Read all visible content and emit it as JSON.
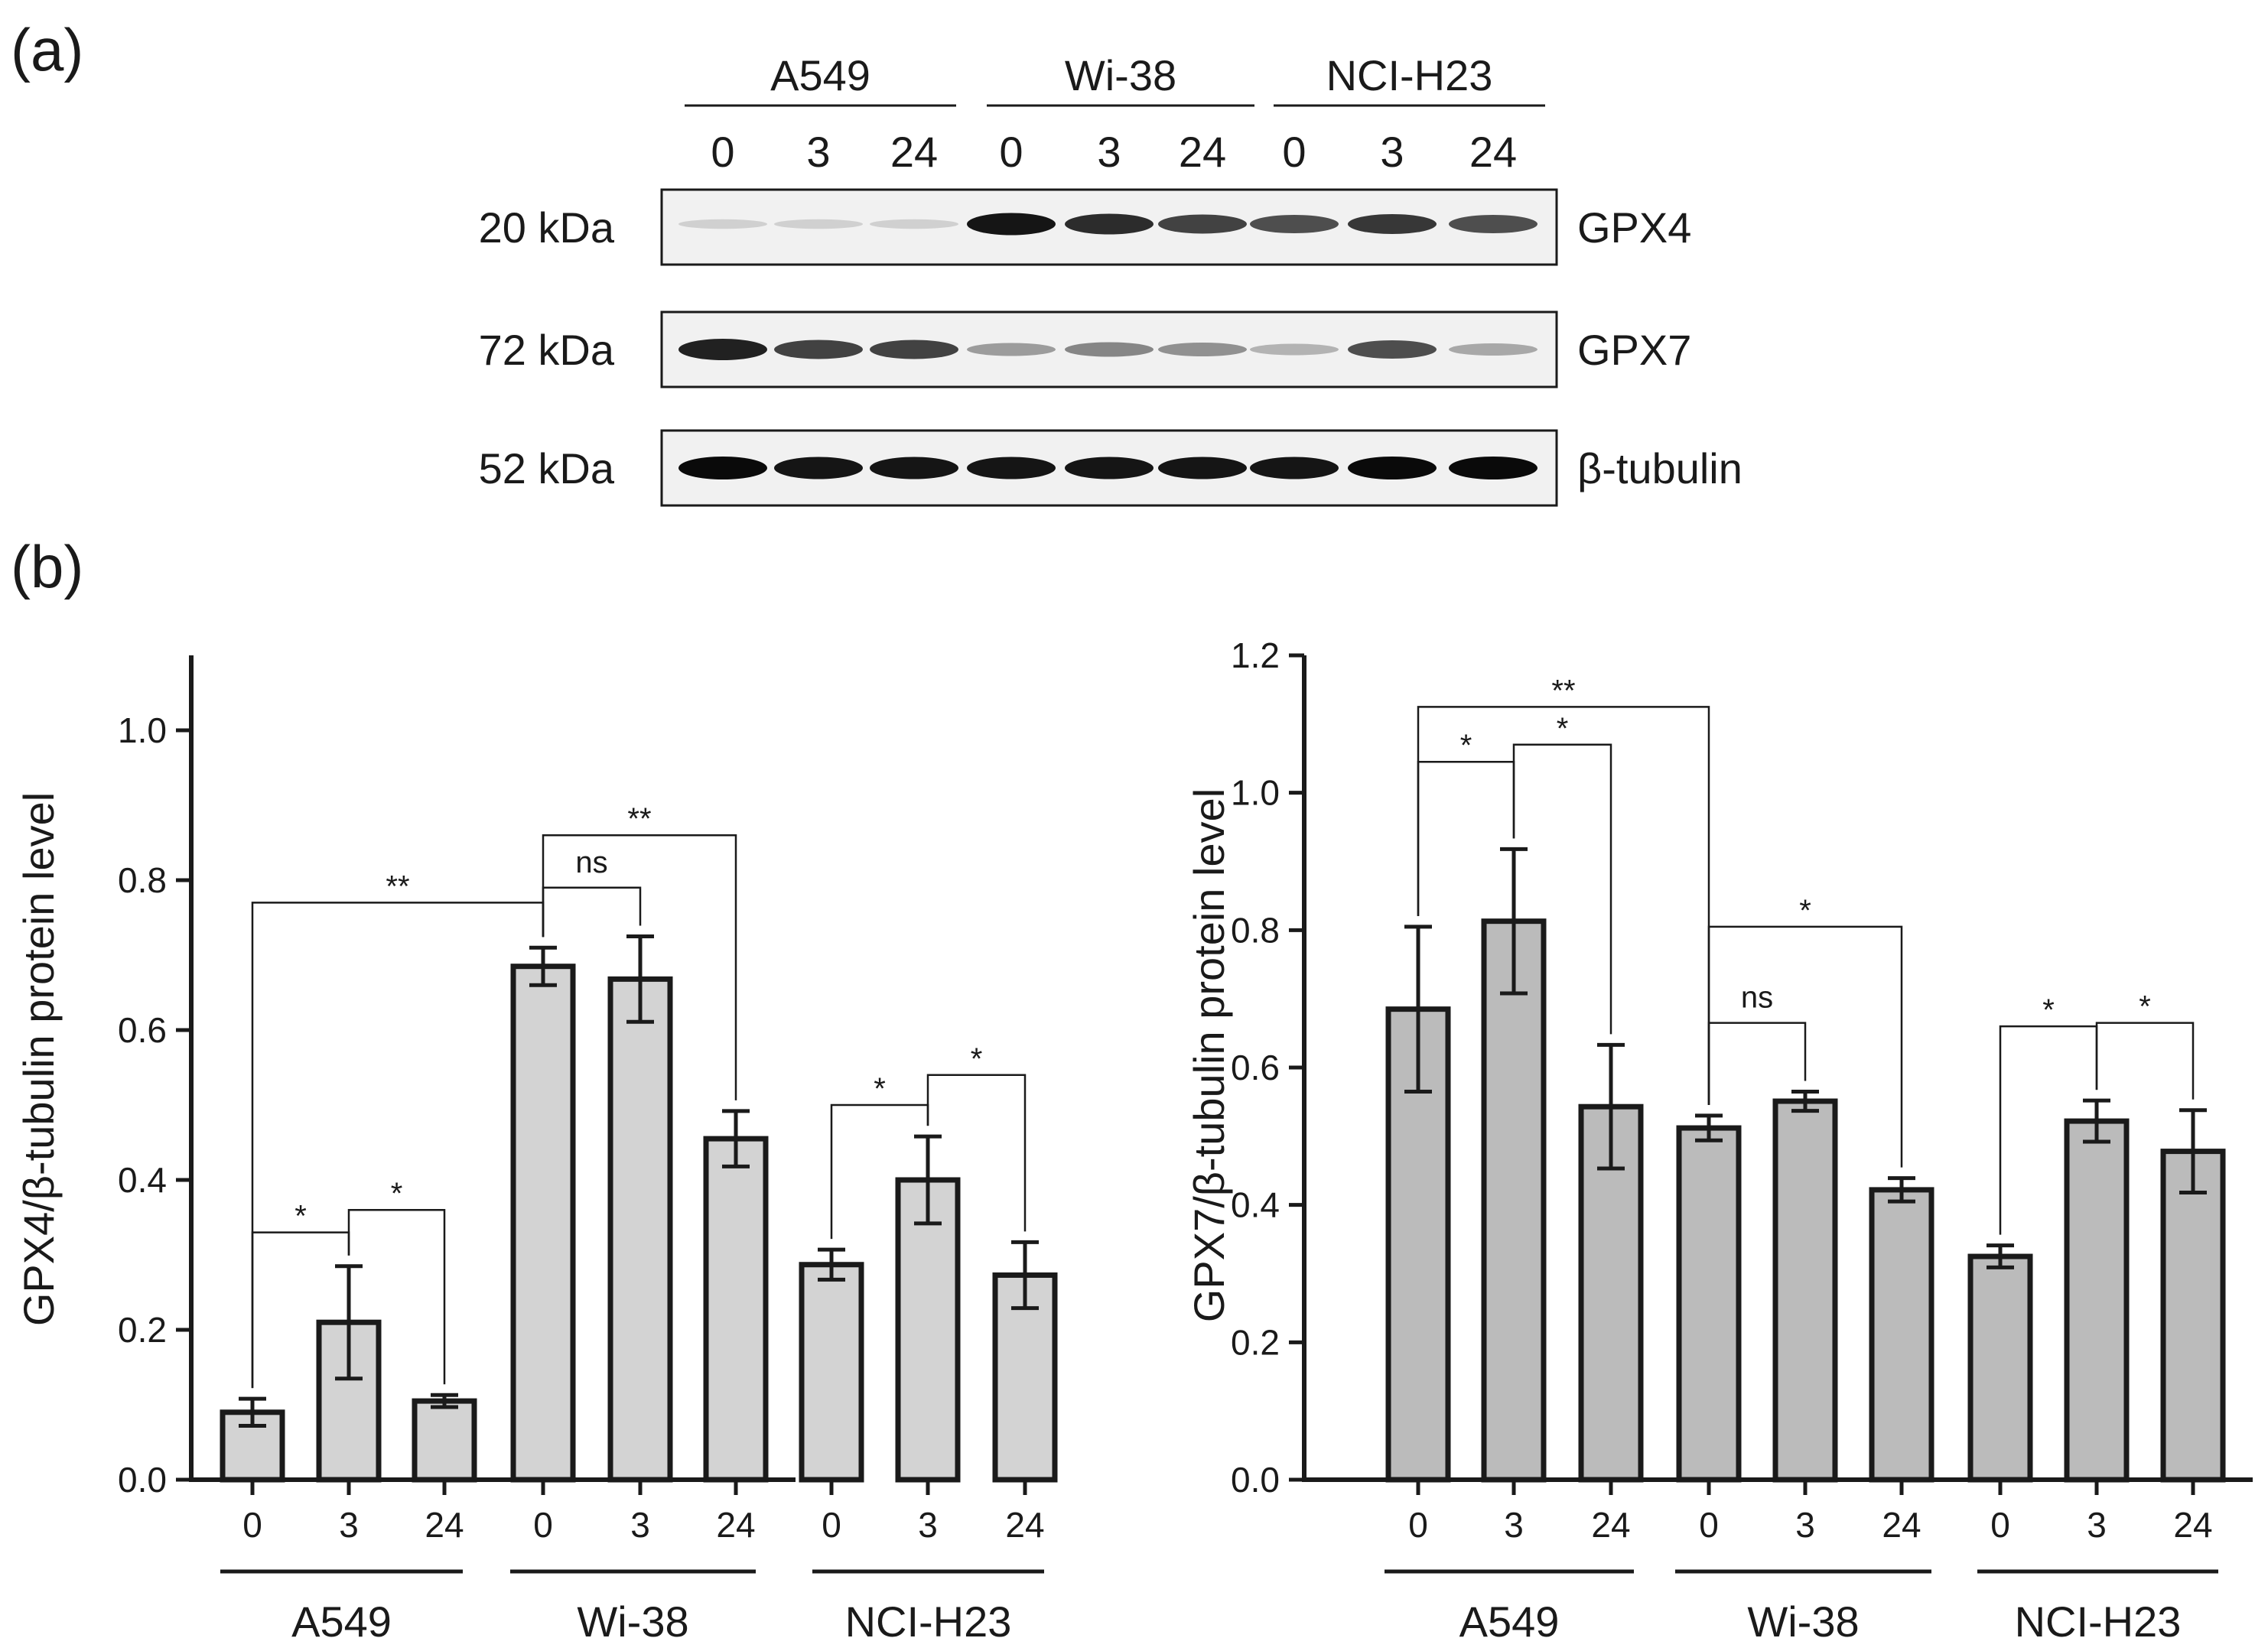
{
  "panel_a": {
    "label": "(a)",
    "cell_lines": [
      "A549",
      "Wi-38",
      "NCI-H23"
    ],
    "timepoints": [
      "0",
      "3",
      "24"
    ],
    "blots": [
      {
        "mw": "20 kDa",
        "protein": "GPX4",
        "band_intensity": [
          0.12,
          0.12,
          0.12,
          0.95,
          0.85,
          0.75,
          0.7,
          0.8,
          0.7
        ]
      },
      {
        "mw": "72 kDa",
        "protein": "GPX7",
        "band_intensity": [
          0.9,
          0.75,
          0.75,
          0.35,
          0.45,
          0.4,
          0.25,
          0.7,
          0.3
        ]
      },
      {
        "mw": "52 kDa",
        "protein": "β-tubulin",
        "band_intensity": [
          1.0,
          0.95,
          0.95,
          0.95,
          0.95,
          0.95,
          0.95,
          1.0,
          1.0
        ]
      }
    ]
  },
  "panel_b": {
    "label": "(b)"
  },
  "chart_data": [
    {
      "type": "bar",
      "ylabel": "GPX4/β-tubulin protein level",
      "ylim": [
        0,
        1.1
      ],
      "yticks": [
        "0.0",
        "0.2",
        "0.4",
        "0.6",
        "0.8",
        "1.0"
      ],
      "ytick_values": [
        0,
        0.2,
        0.4,
        0.6,
        0.8,
        1.0
      ],
      "groups": [
        "A549",
        "Wi-38",
        "NCI-H23"
      ],
      "categories": [
        "0",
        "3",
        "24",
        "0",
        "3",
        "24",
        "0",
        "3",
        "24"
      ],
      "values": [
        0.09,
        0.21,
        0.105,
        0.685,
        0.668,
        0.455,
        0.287,
        0.4,
        0.273
      ],
      "errors": [
        0.018,
        0.075,
        0.008,
        0.025,
        0.057,
        0.037,
        0.02,
        0.058,
        0.044
      ],
      "bar_color": "#d3d3d3",
      "significance": [
        {
          "from": 0,
          "to": 1,
          "label": "*",
          "level": 0.33
        },
        {
          "from": 1,
          "to": 2,
          "label": "*",
          "level": 0.36
        },
        {
          "from": 0,
          "to": 3,
          "label": "**",
          "level": 0.77
        },
        {
          "from": 3,
          "to": 4,
          "label": "ns",
          "level": 0.79
        },
        {
          "from": 3,
          "to": 5,
          "label": "**",
          "level": 0.86
        },
        {
          "from": 6,
          "to": 7,
          "label": "*",
          "level": 0.5
        },
        {
          "from": 7,
          "to": 8,
          "label": "*",
          "level": 0.54
        }
      ]
    },
    {
      "type": "bar",
      "ylabel": "GPX7/β-tubulin protein level",
      "ylim": [
        0,
        1.2
      ],
      "yticks": [
        "0.0",
        "0.2",
        "0.4",
        "0.6",
        "0.8",
        "1.0",
        "1.2"
      ],
      "ytick_values": [
        0,
        0.2,
        0.4,
        0.6,
        0.8,
        1.0,
        1.2
      ],
      "groups": [
        "A549",
        "Wi-38",
        "NCI-H23"
      ],
      "categories": [
        "0",
        "3",
        "24",
        "0",
        "3",
        "24",
        "0",
        "3",
        "24"
      ],
      "values": [
        0.685,
        0.813,
        0.543,
        0.512,
        0.551,
        0.422,
        0.325,
        0.522,
        0.478
      ],
      "errors": [
        0.12,
        0.105,
        0.09,
        0.018,
        0.014,
        0.017,
        0.016,
        0.03,
        0.06
      ],
      "bar_color": "#bbbbbb",
      "significance": [
        {
          "from": 0,
          "to": 1,
          "label": "*",
          "level": 1.045
        },
        {
          "from": 1,
          "to": 2,
          "label": "*",
          "level": 1.07
        },
        {
          "from": 0,
          "to": 3,
          "label": "**",
          "level": 1.125
        },
        {
          "from": 3,
          "to": 4,
          "label": "ns",
          "level": 0.665
        },
        {
          "from": 3,
          "to": 5,
          "label": "*",
          "level": 0.805
        },
        {
          "from": 6,
          "to": 7,
          "label": "*",
          "level": 0.66
        },
        {
          "from": 7,
          "to": 8,
          "label": "*",
          "level": 0.665
        }
      ]
    }
  ]
}
